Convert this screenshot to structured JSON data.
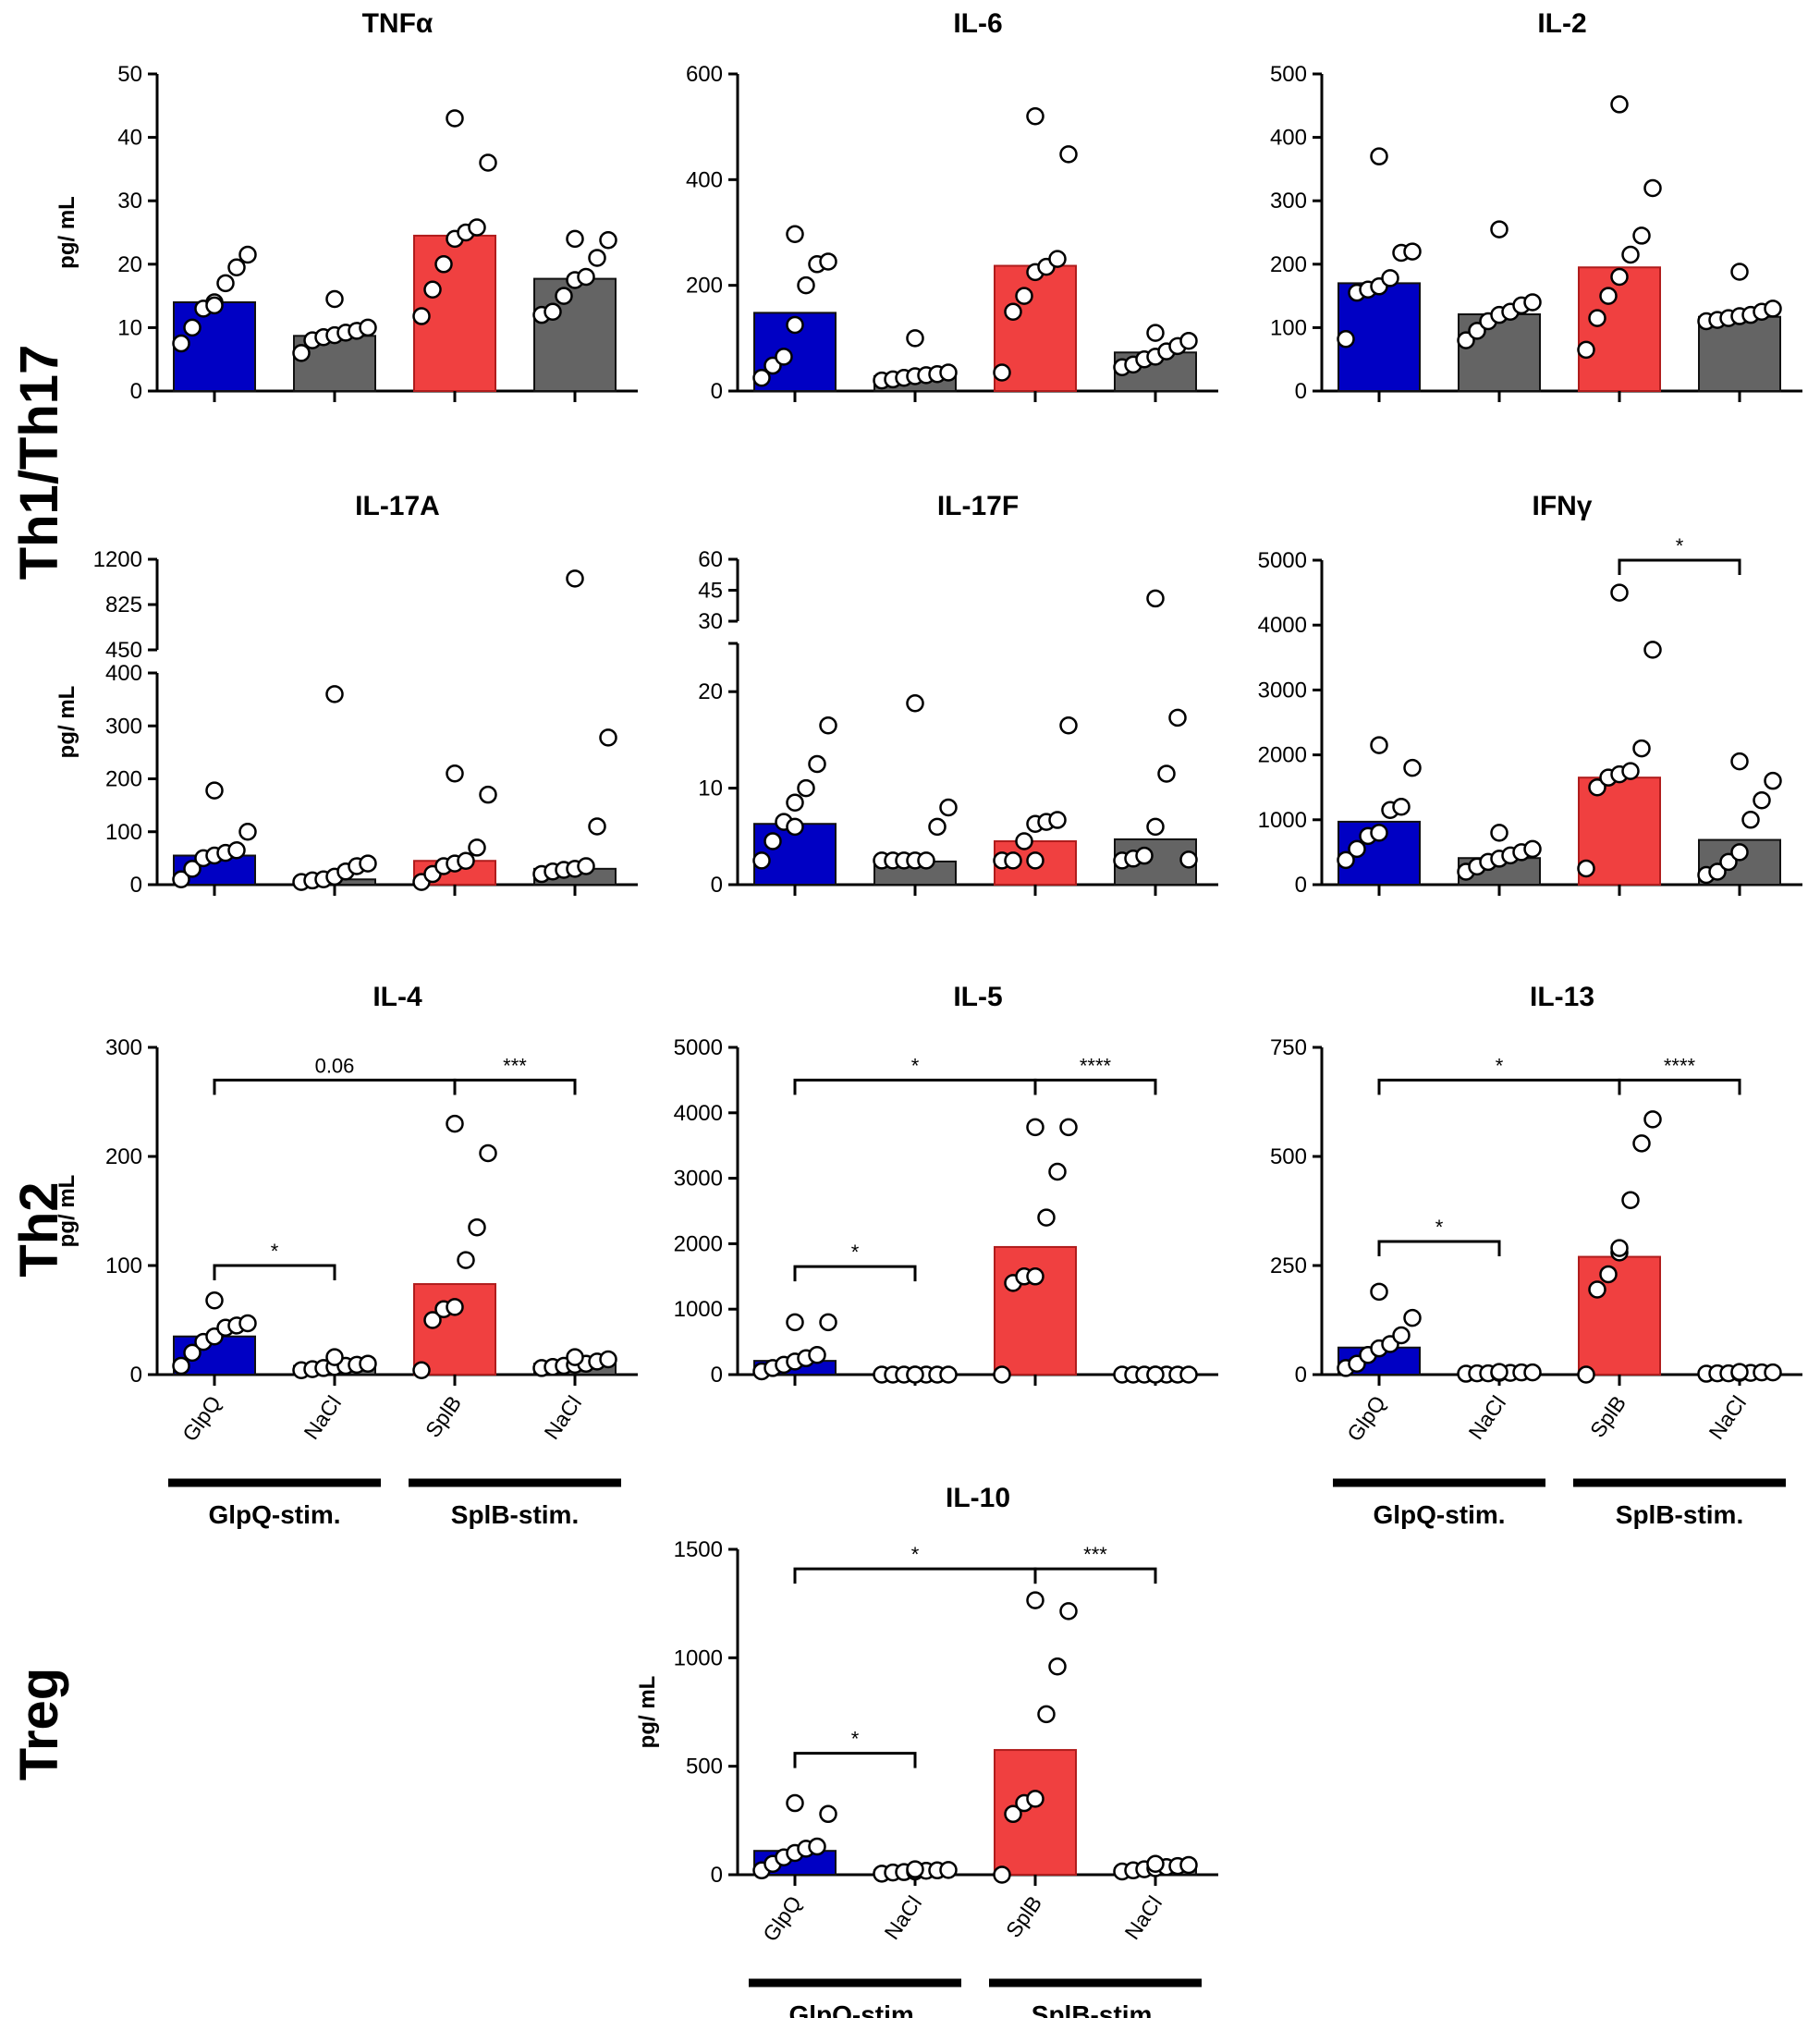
{
  "colors": {
    "GlpQ": "#0000c4",
    "NaCl": "#646464",
    "SplB": "#f04040",
    "axis": "#000000",
    "point_fill": "#ffffff"
  },
  "row_labels": [
    "Th1/Th17",
    "Th2",
    "Treg"
  ],
  "y_label": "pg/ mL",
  "categories": [
    "GlpQ",
    "NaCl",
    "SplB",
    "NaCl"
  ],
  "group_labels": [
    "GlpQ-stim.",
    "SplB-stim."
  ],
  "chart_data": [
    {
      "type": "bar",
      "title": "TNFα",
      "ylim": [
        0,
        50
      ],
      "yticks": [
        0,
        10,
        20,
        30,
        40,
        50
      ],
      "ylabel": "pg/ mL",
      "categories": [
        "GlpQ",
        "NaCl",
        "SplB",
        "NaCl"
      ],
      "bar_colors": [
        "GlpQ",
        "NaCl",
        "SplB",
        "NaCl"
      ],
      "values": [
        14,
        8.7,
        24.5,
        17.7
      ],
      "points": [
        [
          7.5,
          10,
          13,
          14,
          17,
          19.5,
          21.5,
          13.5
        ],
        [
          6,
          8,
          8.5,
          8.8,
          9.2,
          9.5,
          10,
          14.5
        ],
        [
          11.8,
          16,
          20,
          24,
          25,
          25.8,
          36,
          43
        ],
        [
          12,
          12.5,
          15,
          17.5,
          18,
          21,
          23.8,
          24
        ]
      ],
      "brackets": []
    },
    {
      "type": "bar",
      "title": "IL-6",
      "ylim": [
        0,
        600
      ],
      "yticks": [
        0,
        200,
        400,
        600
      ],
      "ylabel": "",
      "categories": [
        "GlpQ",
        "NaCl",
        "SplB",
        "NaCl"
      ],
      "bar_colors": [
        "GlpQ",
        "NaCl",
        "SplB",
        "NaCl"
      ],
      "values": [
        148,
        28,
        237,
        73
      ],
      "points": [
        [
          25,
          48,
          65,
          125,
          200,
          240,
          245,
          297
        ],
        [
          20,
          22,
          25,
          28,
          30,
          32,
          35,
          100
        ],
        [
          35,
          150,
          180,
          225,
          235,
          250,
          448,
          520
        ],
        [
          45,
          50,
          60,
          65,
          75,
          85,
          95,
          110
        ]
      ],
      "brackets": []
    },
    {
      "type": "bar",
      "title": "IL-2",
      "ylim": [
        0,
        500
      ],
      "yticks": [
        0,
        100,
        200,
        300,
        400,
        500
      ],
      "ylabel": "",
      "categories": [
        "GlpQ",
        "NaCl",
        "SplB",
        "NaCl"
      ],
      "bar_colors": [
        "GlpQ",
        "NaCl",
        "SplB",
        "NaCl"
      ],
      "values": [
        170,
        121,
        195,
        117
      ],
      "points": [
        [
          82,
          155,
          160,
          165,
          178,
          218,
          220,
          370
        ],
        [
          80,
          95,
          110,
          120,
          125,
          135,
          140,
          255
        ],
        [
          65,
          115,
          150,
          180,
          215,
          245,
          320,
          452
        ],
        [
          110,
          112,
          115,
          118,
          120,
          125,
          130,
          188
        ]
      ],
      "brackets": []
    },
    {
      "type": "bar",
      "title": "IL-17A",
      "ylim": [
        0,
        400
      ],
      "yticks": [
        0,
        100,
        200,
        300,
        400
      ],
      "upper_ylim": [
        450,
        1200
      ],
      "upper_yticks": [
        450,
        825,
        1200
      ],
      "ylabel": "pg/ mL",
      "categories": [
        "GlpQ",
        "NaCl",
        "SplB",
        "NaCl"
      ],
      "bar_colors": [
        "GlpQ",
        "NaCl",
        "SplB",
        "NaCl"
      ],
      "values": [
        55,
        10,
        45,
        30
      ],
      "points": [
        [
          10,
          30,
          50,
          55,
          60,
          65,
          100,
          178
        ],
        [
          5,
          8,
          10,
          15,
          25,
          35,
          40,
          360
        ],
        [
          5,
          20,
          35,
          40,
          45,
          70,
          170,
          210
        ],
        [
          20,
          25,
          28,
          30,
          35,
          110,
          278,
          1040
        ]
      ],
      "brackets": []
    },
    {
      "type": "bar",
      "title": "IL-17F",
      "ylim": [
        0,
        25
      ],
      "yticks": [
        0,
        10,
        20
      ],
      "upper_ylim": [
        30,
        60
      ],
      "upper_yticks": [
        30,
        45,
        60
      ],
      "ylabel": "",
      "categories": [
        "GlpQ",
        "NaCl",
        "SplB",
        "NaCl"
      ],
      "bar_colors": [
        "GlpQ",
        "NaCl",
        "SplB",
        "NaCl"
      ],
      "values": [
        6.3,
        2.4,
        4.5,
        4.7
      ],
      "points": [
        [
          2.5,
          4.5,
          6.5,
          8.5,
          10,
          12.5,
          16.5,
          6
        ],
        [
          2.5,
          2.5,
          2.5,
          2.5,
          2.5,
          6,
          8,
          18.8
        ],
        [
          2.5,
          2.5,
          4.5,
          6.3,
          6.5,
          6.7,
          16.5,
          2.5
        ],
        [
          2.5,
          2.7,
          3,
          6,
          11.5,
          17.3,
          2.6,
          41
        ]
      ],
      "brackets": []
    },
    {
      "type": "bar",
      "title": "IFNγ",
      "ylim": [
        0,
        5000
      ],
      "yticks": [
        0,
        1000,
        2000,
        3000,
        4000,
        5000
      ],
      "ylabel": "",
      "categories": [
        "GlpQ",
        "NaCl",
        "SplB",
        "NaCl"
      ],
      "bar_colors": [
        "GlpQ",
        "NaCl",
        "SplB",
        "NaCl"
      ],
      "values": [
        970,
        410,
        1650,
        690
      ],
      "points": [
        [
          380,
          550,
          750,
          800,
          1150,
          1200,
          1800,
          2150
        ],
        [
          200,
          280,
          350,
          400,
          450,
          500,
          550,
          800
        ],
        [
          250,
          1500,
          1650,
          1700,
          1750,
          2100,
          3620,
          4500
        ],
        [
          150,
          200,
          350,
          500,
          1000,
          1300,
          1600,
          1900
        ]
      ],
      "brackets": [
        {
          "from": 2,
          "to": 3,
          "label": "*",
          "y": 5100
        }
      ]
    },
    {
      "type": "bar",
      "title": "IL-4",
      "ylim": [
        0,
        300
      ],
      "yticks": [
        0,
        100,
        200,
        300
      ],
      "ylabel": "pg/ mL",
      "categories": [
        "GlpQ",
        "NaCl",
        "SplB",
        "NaCl"
      ],
      "bar_colors": [
        "GlpQ",
        "NaCl",
        "SplB",
        "NaCl"
      ],
      "values": [
        35,
        8,
        83,
        10
      ],
      "points": [
        [
          8,
          20,
          30,
          35,
          43,
          45,
          47,
          68
        ],
        [
          4,
          5,
          6,
          7,
          8,
          9,
          10,
          16
        ],
        [
          4,
          50,
          60,
          62,
          105,
          135,
          203,
          230
        ],
        [
          6,
          7,
          8,
          9,
          10,
          12,
          14,
          16
        ]
      ],
      "brackets": [
        {
          "from": 0,
          "to": 2,
          "label": "0.06",
          "y": 270
        },
        {
          "from": 2,
          "to": 3,
          "label": "***",
          "y": 270
        },
        {
          "from": 0,
          "to": 1,
          "label": "*",
          "y": 100
        }
      ]
    },
    {
      "type": "bar",
      "title": "IL-5",
      "ylim": [
        0,
        5000
      ],
      "yticks": [
        0,
        1000,
        2000,
        3000,
        4000,
        5000
      ],
      "ylabel": "",
      "categories": [
        "GlpQ",
        "NaCl",
        "SplB",
        "NaCl"
      ],
      "bar_colors": [
        "GlpQ",
        "NaCl",
        "SplB",
        "NaCl"
      ],
      "values": [
        210,
        10,
        1950,
        10
      ],
      "points": [
        [
          50,
          100,
          150,
          200,
          250,
          300,
          800,
          800
        ],
        [
          0,
          0,
          0,
          0,
          0,
          0,
          0,
          0
        ],
        [
          0,
          1400,
          1500,
          1500,
          2400,
          3100,
          3780,
          3780
        ],
        [
          0,
          0,
          0,
          0,
          0,
          0,
          0,
          0
        ]
      ],
      "brackets": [
        {
          "from": 0,
          "to": 2,
          "label": "*",
          "y": 4500
        },
        {
          "from": 2,
          "to": 3,
          "label": "****",
          "y": 4500
        },
        {
          "from": 0,
          "to": 1,
          "label": "*",
          "y": 1650
        }
      ]
    },
    {
      "type": "bar",
      "title": "IL-13",
      "ylim": [
        0,
        750
      ],
      "yticks": [
        0,
        250,
        500,
        750
      ],
      "ylabel": "",
      "categories": [
        "GlpQ",
        "NaCl",
        "SplB",
        "NaCl"
      ],
      "bar_colors": [
        "GlpQ",
        "NaCl",
        "SplB",
        "NaCl"
      ],
      "values": [
        62,
        4,
        270,
        4
      ],
      "points": [
        [
          15,
          25,
          45,
          60,
          70,
          90,
          130,
          190
        ],
        [
          2,
          3,
          3,
          4,
          4,
          5,
          5,
          6
        ],
        [
          0,
          195,
          230,
          280,
          400,
          530,
          585,
          290
        ],
        [
          2,
          3,
          3,
          4,
          4,
          5,
          5,
          6
        ]
      ],
      "brackets": [
        {
          "from": 0,
          "to": 2,
          "label": "*",
          "y": 675
        },
        {
          "from": 2,
          "to": 3,
          "label": "****",
          "y": 675
        },
        {
          "from": 0,
          "to": 1,
          "label": "*",
          "y": 305
        }
      ]
    },
    {
      "type": "bar",
      "title": "IL-10",
      "ylim": [
        0,
        1500
      ],
      "yticks": [
        0,
        500,
        1000,
        1500
      ],
      "ylabel": "pg/ mL",
      "categories": [
        "GlpQ",
        "NaCl",
        "SplB",
        "NaCl"
      ],
      "bar_colors": [
        "GlpQ",
        "NaCl",
        "SplB",
        "NaCl"
      ],
      "values": [
        110,
        20,
        575,
        30
      ],
      "points": [
        [
          20,
          50,
          80,
          100,
          120,
          130,
          280,
          330
        ],
        [
          5,
          10,
          12,
          15,
          18,
          20,
          22,
          25
        ],
        [
          0,
          280,
          330,
          350,
          740,
          960,
          1215,
          1265
        ],
        [
          15,
          20,
          25,
          30,
          35,
          40,
          45,
          50
        ]
      ],
      "brackets": [
        {
          "from": 0,
          "to": 2,
          "label": "*",
          "y": 1410
        },
        {
          "from": 2,
          "to": 3,
          "label": "***",
          "y": 1410
        },
        {
          "from": 0,
          "to": 1,
          "label": "*",
          "y": 560
        }
      ]
    }
  ]
}
